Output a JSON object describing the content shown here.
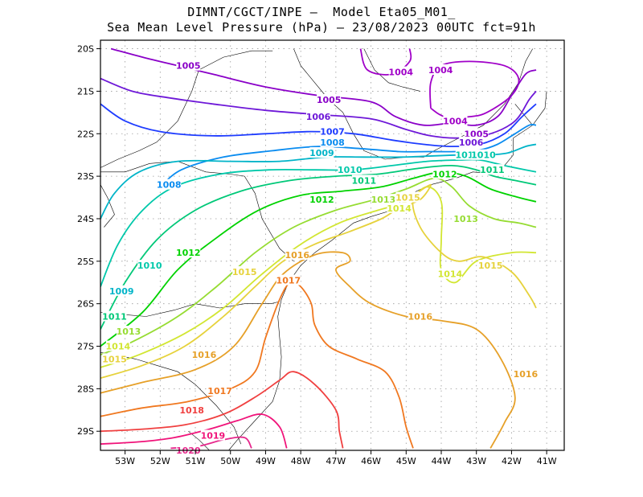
{
  "title_line1": "DIMNT/CGCT/INPE –  Model Eta05_M01_",
  "title_line2": "Sea Mean Level Pressure (hPa) – 23/08/2023 00UTC fct=91h",
  "lon_ticks": [
    "53W",
    "52W",
    "51W",
    "50W",
    "49W",
    "48W",
    "47W",
    "46W",
    "45W",
    "44W",
    "43W",
    "42W",
    "41W"
  ],
  "lat_ticks": [
    "20S",
    "21S",
    "22S",
    "23S",
    "24S",
    "25S",
    "26S",
    "27S",
    "28S",
    "29S"
  ],
  "colors": {
    "1004": "#a000c8",
    "1005": "#8a00c8",
    "1006": "#6e18d8",
    "1007": "#1e3cff",
    "1008": "#0a8cf0",
    "1009": "#00b4c8",
    "1010": "#00c8aa",
    "1011": "#00c878",
    "1012": "#00d200",
    "1013": "#96dc32",
    "1014": "#d2e632",
    "1015": "#e6d23c",
    "1016": "#e6a028",
    "1017": "#f07820",
    "1018": "#f04040",
    "1019": "#f0147a",
    "1020": "#e6288c"
  },
  "isobar_labels": [
    {
      "text": "1004",
      "lon": -45.15,
      "lat": -20.55,
      "level": "1004"
    },
    {
      "text": "1004",
      "lon": -44.02,
      "lat": -20.5,
      "level": "1004"
    },
    {
      "text": "1004",
      "lon": -43.6,
      "lat": -21.7,
      "level": "1004"
    },
    {
      "text": "1005",
      "lon": -51.2,
      "lat": -20.4,
      "level": "1005"
    },
    {
      "text": "1005",
      "lon": -47.2,
      "lat": -21.2,
      "level": "1005"
    },
    {
      "text": "1005",
      "lon": -43.0,
      "lat": -22.0,
      "level": "1005"
    },
    {
      "text": "1006",
      "lon": -47.5,
      "lat": -21.6,
      "level": "1006"
    },
    {
      "text": "1006",
      "lon": -43.15,
      "lat": -22.2,
      "level": "1006"
    },
    {
      "text": "1007",
      "lon": -47.1,
      "lat": -21.95,
      "level": "1007"
    },
    {
      "text": "1008",
      "lon": -51.75,
      "lat": -23.2,
      "level": "1008"
    },
    {
      "text": "1008",
      "lon": -47.1,
      "lat": -22.2,
      "level": "1008"
    },
    {
      "text": "1009",
      "lon": -53.1,
      "lat": -25.7,
      "level": "1009"
    },
    {
      "text": "1009",
      "lon": -47.4,
      "lat": -22.45,
      "level": "1009"
    },
    {
      "text": "1010",
      "lon": -52.3,
      "lat": -25.1,
      "level": "1010"
    },
    {
      "text": "1010",
      "lon": -46.6,
      "lat": -22.85,
      "level": "1010"
    },
    {
      "text": "1010",
      "lon": -43.25,
      "lat": -22.5,
      "level": "1010"
    },
    {
      "text": "1010",
      "lon": -42.8,
      "lat": -22.5,
      "level": "1010"
    },
    {
      "text": "1011",
      "lon": -53.3,
      "lat": -26.3,
      "level": "1011"
    },
    {
      "text": "1011",
      "lon": -46.2,
      "lat": -23.1,
      "level": "1011"
    },
    {
      "text": "1011",
      "lon": -42.55,
      "lat": -22.85,
      "level": "1011"
    },
    {
      "text": "1012",
      "lon": -51.2,
      "lat": -24.8,
      "level": "1012"
    },
    {
      "text": "1012",
      "lon": -47.4,
      "lat": -23.55,
      "level": "1012"
    },
    {
      "text": "1012",
      "lon": -43.9,
      "lat": -22.95,
      "level": "1012"
    },
    {
      "text": "1013",
      "lon": -52.9,
      "lat": -26.65,
      "level": "1013"
    },
    {
      "text": "1013",
      "lon": -45.65,
      "lat": -23.55,
      "level": "1013"
    },
    {
      "text": "1013",
      "lon": -43.3,
      "lat": -24.0,
      "level": "1013"
    },
    {
      "text": "1014",
      "lon": -53.2,
      "lat": -27.0,
      "level": "1014"
    },
    {
      "text": "1014",
      "lon": -45.2,
      "lat": -23.75,
      "level": "1014"
    },
    {
      "text": "1014",
      "lon": -43.75,
      "lat": -25.3,
      "level": "1014"
    },
    {
      "text": "1015",
      "lon": -53.3,
      "lat": -27.3,
      "level": "1015"
    },
    {
      "text": "1015",
      "lon": -49.6,
      "lat": -25.25,
      "level": "1015"
    },
    {
      "text": "1015",
      "lon": -44.95,
      "lat": -23.5,
      "level": "1015"
    },
    {
      "text": "1015",
      "lon": -42.6,
      "lat": -25.1,
      "level": "1015"
    },
    {
      "text": "1016",
      "lon": -50.75,
      "lat": -27.2,
      "level": "1016"
    },
    {
      "text": "1016",
      "lon": -48.1,
      "lat": -24.85,
      "level": "1016"
    },
    {
      "text": "1016",
      "lon": -44.6,
      "lat": -26.3,
      "level": "1016"
    },
    {
      "text": "1016",
      "lon": -41.6,
      "lat": -27.65,
      "level": "1016"
    },
    {
      "text": "1017",
      "lon": -50.3,
      "lat": -28.05,
      "level": "1017"
    },
    {
      "text": "1017",
      "lon": -48.35,
      "lat": -25.45,
      "level": "1017"
    },
    {
      "text": "1018",
      "lon": -51.1,
      "lat": -28.5,
      "level": "1018"
    },
    {
      "text": "1019",
      "lon": -50.5,
      "lat": -29.1,
      "level": "1019"
    },
    {
      "text": "1020",
      "lon": -51.2,
      "lat": -29.45,
      "level": "1020"
    }
  ],
  "isobars": [
    {
      "level": "1004",
      "points": [
        [
          -46.3,
          -20.0
        ],
        [
          -46.1,
          -20.5
        ],
        [
          -45.4,
          -20.6
        ],
        [
          -44.9,
          -20.3
        ],
        [
          -44.9,
          -20.0
        ]
      ]
    },
    {
      "level": "1004",
      "points": [
        [
          -44.3,
          -21.4
        ],
        [
          -44.3,
          -20.8
        ],
        [
          -44.0,
          -20.4
        ],
        [
          -43.2,
          -20.3
        ],
        [
          -42.2,
          -20.4
        ],
        [
          -41.8,
          -20.7
        ],
        [
          -42.0,
          -21.1
        ],
        [
          -42.7,
          -21.5
        ],
        [
          -43.2,
          -21.6
        ],
        [
          -43.9,
          -21.6
        ],
        [
          -44.3,
          -21.4
        ]
      ]
    },
    {
      "level": "1005",
      "points": [
        [
          -53.4,
          -20.0
        ],
        [
          -52.5,
          -20.2
        ],
        [
          -51.5,
          -20.4
        ],
        [
          -50.5,
          -20.6
        ],
        [
          -49.0,
          -20.9
        ],
        [
          -47.5,
          -21.1
        ],
        [
          -46.0,
          -21.25
        ],
        [
          -45.3,
          -21.6
        ],
        [
          -44.5,
          -21.8
        ],
        [
          -43.7,
          -21.75
        ],
        [
          -43.0,
          -21.8
        ],
        [
          -42.4,
          -21.6
        ],
        [
          -42.0,
          -21.1
        ],
        [
          -41.6,
          -20.6
        ],
        [
          -41.3,
          -20.5
        ]
      ]
    },
    {
      "level": "1006",
      "points": [
        [
          -53.7,
          -20.7
        ],
        [
          -52.8,
          -21.0
        ],
        [
          -51.8,
          -21.15
        ],
        [
          -50.5,
          -21.3
        ],
        [
          -49.0,
          -21.45
        ],
        [
          -47.5,
          -21.55
        ],
        [
          -46.0,
          -21.65
        ],
        [
          -45.0,
          -21.9
        ],
        [
          -44.3,
          -22.05
        ],
        [
          -43.5,
          -22.1
        ],
        [
          -42.6,
          -22.0
        ],
        [
          -41.9,
          -21.7
        ],
        [
          -41.5,
          -21.2
        ],
        [
          -41.3,
          -21.0
        ]
      ]
    },
    {
      "level": "1007",
      "points": [
        [
          -53.7,
          -21.3
        ],
        [
          -53.0,
          -21.7
        ],
        [
          -52.0,
          -21.95
        ],
        [
          -50.5,
          -22.05
        ],
        [
          -49.0,
          -22.0
        ],
        [
          -47.7,
          -21.95
        ],
        [
          -46.5,
          -22.0
        ],
        [
          -45.4,
          -22.15
        ],
        [
          -44.5,
          -22.25
        ],
        [
          -43.7,
          -22.3
        ],
        [
          -42.9,
          -22.25
        ],
        [
          -42.2,
          -22.0
        ],
        [
          -41.7,
          -21.6
        ],
        [
          -41.3,
          -21.3
        ]
      ]
    },
    {
      "level": "1008",
      "points": [
        [
          -52.0,
          -23.25
        ],
        [
          -51.4,
          -22.85
        ],
        [
          -50.2,
          -22.55
        ],
        [
          -48.8,
          -22.4
        ],
        [
          -47.5,
          -22.3
        ],
        [
          -46.3,
          -22.35
        ],
        [
          -45.2,
          -22.42
        ],
        [
          -44.4,
          -22.42
        ],
        [
          -43.6,
          -22.42
        ],
        [
          -42.9,
          -22.38
        ],
        [
          -42.4,
          -22.25
        ],
        [
          -41.9,
          -22.0
        ],
        [
          -41.5,
          -21.8
        ],
        [
          -41.3,
          -21.8
        ]
      ]
    },
    {
      "level": "1009",
      "points": [
        [
          -53.7,
          -24.0
        ],
        [
          -53.3,
          -23.4
        ],
        [
          -52.6,
          -22.9
        ],
        [
          -51.5,
          -22.65
        ],
        [
          -50.0,
          -22.65
        ],
        [
          -48.6,
          -22.65
        ],
        [
          -47.3,
          -22.55
        ],
        [
          -46.2,
          -22.55
        ],
        [
          -45.1,
          -22.55
        ],
        [
          -44.2,
          -22.52
        ],
        [
          -43.4,
          -22.5
        ],
        [
          -42.7,
          -22.5
        ],
        [
          -42.1,
          -22.45
        ],
        [
          -41.6,
          -22.3
        ],
        [
          -41.3,
          -22.25
        ]
      ]
    },
    {
      "level": "1010",
      "points": [
        [
          -53.7,
          -25.6
        ],
        [
          -53.2,
          -24.6
        ],
        [
          -52.5,
          -23.8
        ],
        [
          -51.6,
          -23.25
        ],
        [
          -50.3,
          -22.95
        ],
        [
          -48.9,
          -22.85
        ],
        [
          -47.6,
          -22.85
        ],
        [
          -46.5,
          -22.85
        ],
        [
          -45.4,
          -22.75
        ],
        [
          -44.4,
          -22.65
        ],
        [
          -43.5,
          -22.62
        ],
        [
          -42.9,
          -22.62
        ],
        [
          -42.2,
          -22.75
        ],
        [
          -41.6,
          -22.85
        ],
        [
          -41.3,
          -22.9
        ]
      ]
    },
    {
      "level": "1011",
      "points": [
        [
          -53.7,
          -26.6
        ],
        [
          -53.0,
          -25.5
        ],
        [
          -52.1,
          -24.5
        ],
        [
          -51.0,
          -23.8
        ],
        [
          -49.7,
          -23.35
        ],
        [
          -48.3,
          -23.1
        ],
        [
          -47.0,
          -23.0
        ],
        [
          -45.8,
          -22.95
        ],
        [
          -44.7,
          -22.82
        ],
        [
          -43.7,
          -22.75
        ],
        [
          -43.0,
          -22.85
        ],
        [
          -42.5,
          -23.0
        ],
        [
          -41.9,
          -23.1
        ],
        [
          -41.3,
          -23.2
        ]
      ]
    },
    {
      "level": "1012",
      "points": [
        [
          -53.7,
          -27.0
        ],
        [
          -52.5,
          -26.2
        ],
        [
          -51.5,
          -25.2
        ],
        [
          -50.4,
          -24.45
        ],
        [
          -49.2,
          -23.8
        ],
        [
          -48.0,
          -23.45
        ],
        [
          -46.8,
          -23.35
        ],
        [
          -45.7,
          -23.25
        ],
        [
          -44.8,
          -23.05
        ],
        [
          -44.0,
          -22.9
        ],
        [
          -43.3,
          -23.0
        ],
        [
          -42.6,
          -23.3
        ],
        [
          -41.8,
          -23.5
        ],
        [
          -41.3,
          -23.6
        ]
      ]
    },
    {
      "level": "1013",
      "points": [
        [
          -53.7,
          -27.2
        ],
        [
          -52.8,
          -26.9
        ],
        [
          -51.5,
          -26.3
        ],
        [
          -50.4,
          -25.6
        ],
        [
          -49.3,
          -24.8
        ],
        [
          -48.2,
          -24.2
        ],
        [
          -47.0,
          -23.8
        ],
        [
          -45.9,
          -23.55
        ],
        [
          -45.0,
          -23.3
        ],
        [
          -44.2,
          -23.05
        ],
        [
          -43.7,
          -23.25
        ],
        [
          -43.2,
          -23.7
        ],
        [
          -42.5,
          -24.0
        ],
        [
          -41.8,
          -24.1
        ],
        [
          -41.3,
          -24.2
        ]
      ]
    },
    {
      "level": "1014",
      "points": [
        [
          -53.7,
          -27.5
        ],
        [
          -52.6,
          -27.2
        ],
        [
          -51.3,
          -26.7
        ],
        [
          -50.2,
          -26.1
        ],
        [
          -49.1,
          -25.3
        ],
        [
          -48.0,
          -24.6
        ],
        [
          -46.9,
          -24.1
        ],
        [
          -45.8,
          -23.8
        ],
        [
          -45.0,
          -23.6
        ],
        [
          -44.4,
          -23.25
        ],
        [
          -44.0,
          -23.6
        ],
        [
          -44.0,
          -24.5
        ],
        [
          -44.0,
          -25.2
        ],
        [
          -43.6,
          -25.5
        ],
        [
          -43.0,
          -25.0
        ],
        [
          -42.0,
          -24.8
        ],
        [
          -41.3,
          -24.8
        ]
      ]
    },
    {
      "level": "1015",
      "points": [
        [
          -53.7,
          -27.75
        ],
        [
          -52.5,
          -27.45
        ],
        [
          -51.3,
          -27.0
        ],
        [
          -50.2,
          -26.3
        ],
        [
          -49.3,
          -25.6
        ],
        [
          -48.5,
          -25.0
        ],
        [
          -47.6,
          -24.6
        ],
        [
          -46.6,
          -24.3
        ],
        [
          -45.7,
          -24.0
        ],
        [
          -45.2,
          -23.75
        ],
        [
          -44.6,
          -23.55
        ],
        [
          -44.3,
          -23.2
        ],
        [
          -44.8,
          -23.55
        ],
        [
          -44.6,
          -24.2
        ],
        [
          -44.0,
          -24.8
        ],
        [
          -43.5,
          -25.0
        ],
        [
          -42.8,
          -24.9
        ],
        [
          -42.0,
          -25.25
        ],
        [
          -41.5,
          -25.8
        ],
        [
          -41.3,
          -26.1
        ]
      ]
    },
    {
      "level": "1016",
      "points": [
        [
          -53.7,
          -28.1
        ],
        [
          -52.5,
          -27.85
        ],
        [
          -51.0,
          -27.55
        ],
        [
          -49.9,
          -27.0
        ],
        [
          -49.1,
          -26.0
        ],
        [
          -48.5,
          -25.3
        ],
        [
          -47.6,
          -24.85
        ],
        [
          -46.8,
          -24.8
        ],
        [
          -46.6,
          -25.0
        ],
        [
          -47.0,
          -25.2
        ],
        [
          -46.6,
          -25.6
        ],
        [
          -46.0,
          -26.0
        ],
        [
          -45.0,
          -26.3
        ],
        [
          -44.0,
          -26.4
        ],
        [
          -43.0,
          -26.6
        ],
        [
          -42.3,
          -27.3
        ],
        [
          -41.9,
          -28.2
        ],
        [
          -42.2,
          -28.8
        ],
        [
          -42.6,
          -29.4
        ]
      ]
    },
    {
      "level": "1017",
      "points": [
        [
          -53.7,
          -28.65
        ],
        [
          -52.5,
          -28.45
        ],
        [
          -51.2,
          -28.3
        ],
        [
          -50.0,
          -28.0
        ],
        [
          -49.3,
          -27.6
        ],
        [
          -49.0,
          -26.8
        ],
        [
          -48.6,
          -25.9
        ],
        [
          -48.3,
          -25.5
        ],
        [
          -48.0,
          -25.6
        ],
        [
          -47.7,
          -26.0
        ],
        [
          -47.6,
          -26.5
        ],
        [
          -47.2,
          -27.0
        ],
        [
          -46.4,
          -27.3
        ],
        [
          -45.6,
          -27.6
        ],
        [
          -45.2,
          -28.2
        ],
        [
          -45.0,
          -28.9
        ],
        [
          -44.8,
          -29.4
        ]
      ]
    },
    {
      "level": "1018",
      "points": [
        [
          -53.7,
          -29.0
        ],
        [
          -52.5,
          -28.95
        ],
        [
          -51.3,
          -28.85
        ],
        [
          -50.2,
          -28.6
        ],
        [
          -49.3,
          -28.2
        ],
        [
          -48.6,
          -27.8
        ],
        [
          -48.2,
          -27.6
        ],
        [
          -47.6,
          -27.9
        ],
        [
          -47.0,
          -28.5
        ],
        [
          -46.9,
          -29.0
        ],
        [
          -46.8,
          -29.4
        ]
      ]
    },
    {
      "level": "1019",
      "points": [
        [
          -53.7,
          -29.3
        ],
        [
          -52.6,
          -29.25
        ],
        [
          -51.6,
          -29.15
        ],
        [
          -50.6,
          -28.95
        ],
        [
          -49.8,
          -28.75
        ],
        [
          -49.1,
          -28.6
        ],
        [
          -48.6,
          -28.9
        ],
        [
          -48.4,
          -29.4
        ]
      ]
    },
    {
      "level": "1020",
      "points": [
        [
          -51.7,
          -29.4
        ],
        [
          -50.9,
          -29.35
        ],
        [
          -50.2,
          -29.2
        ],
        [
          -49.6,
          -29.15
        ],
        [
          -49.4,
          -29.4
        ]
      ]
    }
  ]
}
